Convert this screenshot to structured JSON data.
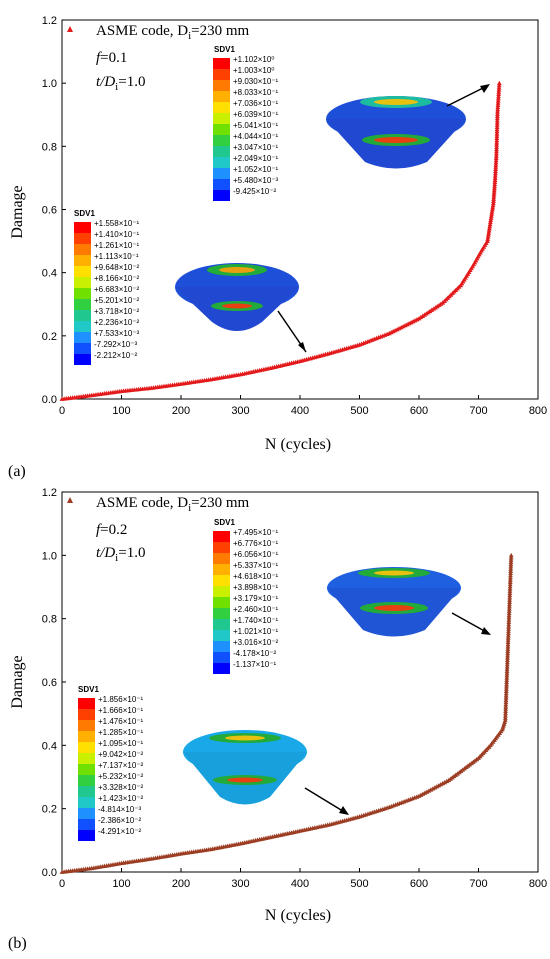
{
  "chart_data": [
    {
      "type": "scatter",
      "panel_label": "(a)",
      "xlabel": "N (cycles)",
      "ylabel": "Damage",
      "xlim": [
        0,
        800
      ],
      "ylim": [
        0,
        1.2
      ],
      "xticks": [
        "0",
        "100",
        "200",
        "300",
        "400",
        "500",
        "600",
        "700",
        "800"
      ],
      "yticks": [
        "0.0",
        "0.2",
        "0.4",
        "0.6",
        "0.8",
        "1.0",
        "1.2"
      ],
      "annotations": [
        "ASME code, D",
        "i",
        "=230 mm",
        "f",
        "=0.1",
        "t/D",
        "i",
        "=1.0"
      ],
      "marker_color": "#e31a1c",
      "legend_marker": "triangle",
      "series": [
        {
          "points": [
            [
              0,
              0
            ],
            [
              50,
              0.012
            ],
            [
              100,
              0.025
            ],
            [
              150,
              0.035
            ],
            [
              200,
              0.048
            ],
            [
              250,
              0.062
            ],
            [
              300,
              0.078
            ],
            [
              350,
              0.098
            ],
            [
              400,
              0.12
            ],
            [
              450,
              0.145
            ],
            [
              500,
              0.172
            ],
            [
              550,
              0.208
            ],
            [
              600,
              0.255
            ],
            [
              640,
              0.305
            ],
            [
              670,
              0.36
            ],
            [
              690,
              0.42
            ],
            [
              705,
              0.47
            ],
            [
              715,
              0.5
            ],
            [
              720,
              0.56
            ],
            [
              725,
              0.62
            ],
            [
              728,
              0.7
            ],
            [
              730,
              0.77
            ],
            [
              732,
              0.91
            ],
            [
              735,
              1.0
            ]
          ]
        }
      ],
      "contour_small": {
        "title": "SDV1",
        "labels": [
          "+1.558×10⁻¹",
          "+1.410×10⁻¹",
          "+1.261×10⁻¹",
          "+1.113×10⁻¹",
          "+9.648×10⁻²",
          "+8.166×10⁻²",
          "+6.683×10⁻²",
          "+5.201×10⁻²",
          "+3.718×10⁻²",
          "+2.236×10⁻²",
          "+7.533×10⁻³",
          "-7.292×10⁻³",
          "-2.212×10⁻²"
        ],
        "colors": [
          "#ff0000",
          "#ff4000",
          "#ff7a00",
          "#ffb000",
          "#ffe000",
          "#c8f000",
          "#70e000",
          "#30d040",
          "#20c890",
          "#20c8c8",
          "#1e90ff",
          "#1050ff",
          "#0000ff"
        ]
      },
      "contour_large": {
        "title": "SDV1",
        "labels": [
          "+1.102×10⁰",
          "+1.003×10⁰",
          "+9.030×10⁻¹",
          "+8.033×10⁻¹",
          "+7.036×10⁻¹",
          "+6.039×10⁻¹",
          "+5.041×10⁻¹",
          "+4.044×10⁻¹",
          "+3.047×10⁻¹",
          "+2.049×10⁻¹",
          "+1.052×10⁻¹",
          "+5.480×10⁻³",
          "-9.425×10⁻²"
        ],
        "colors": [
          "#ff0000",
          "#ff4000",
          "#ff7a00",
          "#ffb000",
          "#ffe000",
          "#c8f000",
          "#70e000",
          "#30d040",
          "#20c890",
          "#20c8c8",
          "#1e90ff",
          "#1050ff",
          "#0000ff"
        ]
      }
    },
    {
      "type": "scatter",
      "panel_label": "(b)",
      "xlabel": "N (cycles)",
      "ylabel": "Damage",
      "xlim": [
        0,
        800
      ],
      "ylim": [
        0,
        1.2
      ],
      "xticks": [
        "0",
        "100",
        "200",
        "300",
        "400",
        "500",
        "600",
        "700",
        "800"
      ],
      "yticks": [
        "0.0",
        "0.2",
        "0.4",
        "0.6",
        "0.8",
        "1.0",
        "1.2"
      ],
      "annotations": [
        "ASME code, D",
        "i",
        "=230 mm",
        "f",
        "=0.2",
        "t/D",
        "i",
        "=1.0"
      ],
      "marker_color": "#9c3d23",
      "legend_marker": "triangle",
      "series": [
        {
          "points": [
            [
              0,
              0
            ],
            [
              50,
              0.012
            ],
            [
              100,
              0.028
            ],
            [
              150,
              0.042
            ],
            [
              200,
              0.058
            ],
            [
              250,
              0.072
            ],
            [
              300,
              0.09
            ],
            [
              350,
              0.11
            ],
            [
              400,
              0.13
            ],
            [
              450,
              0.15
            ],
            [
              500,
              0.175
            ],
            [
              550,
              0.205
            ],
            [
              600,
              0.24
            ],
            [
              650,
              0.29
            ],
            [
              700,
              0.36
            ],
            [
              720,
              0.4
            ],
            [
              740,
              0.45
            ],
            [
              745,
              0.48
            ],
            [
              750,
              0.74
            ],
            [
              755,
              1.0
            ]
          ]
        }
      ],
      "contour_small": {
        "title": "SDV1",
        "labels": [
          "+1.856×10⁻¹",
          "+1.666×10⁻¹",
          "+1.476×10⁻¹",
          "+1.285×10⁻¹",
          "+1.095×10⁻¹",
          "+9.042×10⁻²",
          "+7.137×10⁻²",
          "+5.232×10⁻²",
          "+3.328×10⁻²",
          "+1.423×10⁻²",
          "-4.814×10⁻³",
          "-2.386×10⁻²",
          "-4.291×10⁻²"
        ],
        "colors": [
          "#ff0000",
          "#ff4000",
          "#ff7a00",
          "#ffb000",
          "#ffe000",
          "#c8f000",
          "#70e000",
          "#30d040",
          "#20c890",
          "#20c8c8",
          "#1e90ff",
          "#1050ff",
          "#0000ff"
        ]
      },
      "contour_large": {
        "title": "SDV1",
        "labels": [
          "+7.495×10⁻¹",
          "+6.776×10⁻¹",
          "+6.056×10⁻¹",
          "+5.337×10⁻¹",
          "+4.618×10⁻¹",
          "+3.898×10⁻¹",
          "+3.179×10⁻¹",
          "+2.460×10⁻¹",
          "+1.740×10⁻¹",
          "+1.021×10⁻¹",
          "+3.016×10⁻²",
          "-4.178×10⁻²",
          "-1.137×10⁻¹"
        ],
        "colors": [
          "#ff0000",
          "#ff4000",
          "#ff7a00",
          "#ffb000",
          "#ffe000",
          "#c8f000",
          "#70e000",
          "#30d040",
          "#20c890",
          "#20c8c8",
          "#1e90ff",
          "#1050ff",
          "#0000ff"
        ]
      }
    }
  ]
}
